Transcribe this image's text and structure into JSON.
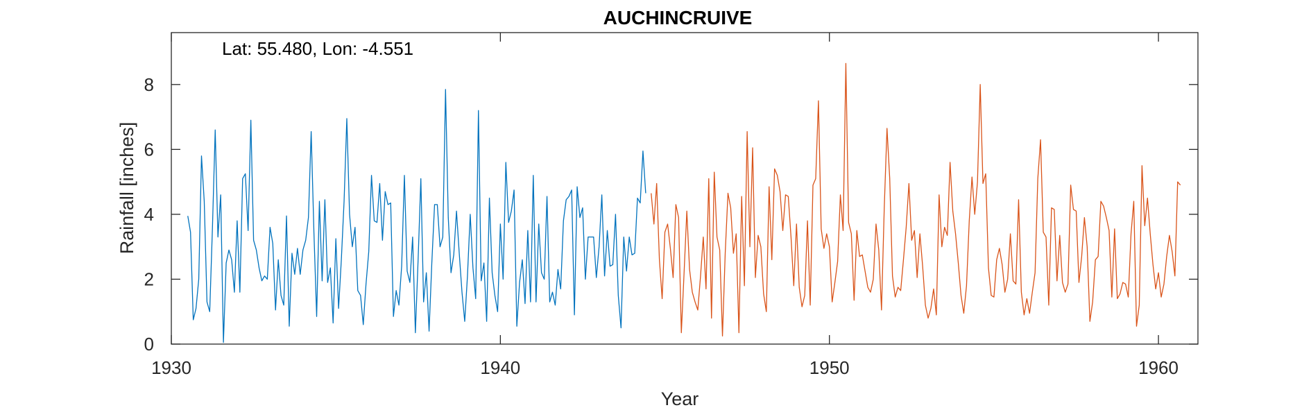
{
  "chart_data": {
    "type": "line",
    "title": "AUCHINCRUIVE",
    "xlabel": "Year",
    "ylabel": "Rainfall [inches]",
    "annotation": "Lat: 55.480, Lon: -4.551",
    "xlim": [
      1930,
      1961.2
    ],
    "ylim": [
      0,
      9.6
    ],
    "xticks": [
      1930,
      1940,
      1950,
      1960
    ],
    "yticks": [
      0,
      2,
      4,
      6,
      8
    ],
    "grid": false,
    "legend": "none",
    "series": [
      {
        "color": "#0072BD",
        "x_start": 1930.5,
        "x_step": 0.0833333,
        "values": [
          3.95,
          3.45,
          0.75,
          1.1,
          2.0,
          5.8,
          4.4,
          1.3,
          1.0,
          3.6,
          6.6,
          3.3,
          4.6,
          0.05,
          2.5,
          2.9,
          2.6,
          1.6,
          3.8,
          1.6,
          5.1,
          5.25,
          3.5,
          6.9,
          3.2,
          2.9,
          2.35,
          1.95,
          2.1,
          2.0,
          3.6,
          3.1,
          1.05,
          2.6,
          1.5,
          1.2,
          3.95,
          0.55,
          2.8,
          2.15,
          2.95,
          2.15,
          2.9,
          3.2,
          3.9,
          6.55,
          3.45,
          0.85,
          4.4,
          1.95,
          4.45,
          1.9,
          2.35,
          0.65,
          3.25,
          1.1,
          2.6,
          4.4,
          6.95,
          4.0,
          3.0,
          3.6,
          1.65,
          1.5,
          0.6,
          1.85,
          2.85,
          5.2,
          3.8,
          3.75,
          4.95,
          3.2,
          4.7,
          4.3,
          4.35,
          0.85,
          1.65,
          1.2,
          2.4,
          5.2,
          2.25,
          1.9,
          3.3,
          0.35,
          2.6,
          5.1,
          1.3,
          2.2,
          0.4,
          2.5,
          4.3,
          4.3,
          3.0,
          3.3,
          7.85,
          3.9,
          2.2,
          2.75,
          4.1,
          2.8,
          1.6,
          0.7,
          2.1,
          4.0,
          2.35,
          1.4,
          7.2,
          1.95,
          2.5,
          0.7,
          4.5,
          2.2,
          1.5,
          1.0,
          3.7,
          2.0,
          5.6,
          3.75,
          4.1,
          4.75,
          0.55,
          1.9,
          2.6,
          1.25,
          3.5,
          1.3,
          5.2,
          1.3,
          3.7,
          2.2,
          2.0,
          4.55,
          1.3,
          1.6,
          1.2,
          2.3,
          1.7,
          3.8,
          4.45,
          4.55,
          4.75,
          0.9,
          4.85,
          3.9,
          4.2,
          2.0,
          3.3,
          3.3,
          3.3,
          2.05,
          3.0,
          4.6,
          2.1,
          3.5,
          2.4,
          2.45,
          4.0,
          1.5,
          0.5,
          3.3,
          2.25,
          3.3,
          2.75,
          2.8,
          4.5,
          4.35,
          5.95,
          4.65
        ]
      },
      {
        "color": "#D95319",
        "x_start": 1944.5833,
        "x_step": 0.0833333,
        "values": [
          4.65,
          3.7,
          4.95,
          2.6,
          1.4,
          3.45,
          3.7,
          2.95,
          2.05,
          4.3,
          3.9,
          0.35,
          2.2,
          4.1,
          2.3,
          1.6,
          1.3,
          1.05,
          2.1,
          3.3,
          1.7,
          5.1,
          0.8,
          5.3,
          3.3,
          2.9,
          0.25,
          2.8,
          4.65,
          4.2,
          2.8,
          3.4,
          0.35,
          4.55,
          1.8,
          6.55,
          3.0,
          6.05,
          2.05,
          3.35,
          3.0,
          1.55,
          1.0,
          4.85,
          2.6,
          5.4,
          5.2,
          4.7,
          3.5,
          4.6,
          4.55,
          3.3,
          1.8,
          3.7,
          1.75,
          1.15,
          1.5,
          3.8,
          1.2,
          4.9,
          5.1,
          7.5,
          3.55,
          2.95,
          3.4,
          3.0,
          1.3,
          1.9,
          2.55,
          4.6,
          3.5,
          8.65,
          3.75,
          3.4,
          1.35,
          3.5,
          2.7,
          2.75,
          2.25,
          1.75,
          1.6,
          2.0,
          3.7,
          2.9,
          1.05,
          4.2,
          6.65,
          5.1,
          2.1,
          1.45,
          1.75,
          1.65,
          2.6,
          3.6,
          4.95,
          3.2,
          3.5,
          2.05,
          3.4,
          2.4,
          1.2,
          0.8,
          1.1,
          1.7,
          0.9,
          4.6,
          3.0,
          3.6,
          3.35,
          5.6,
          4.1,
          3.4,
          2.5,
          1.5,
          0.95,
          1.8,
          3.8,
          5.15,
          4.0,
          5.0,
          8.0,
          4.95,
          5.25,
          2.35,
          1.5,
          1.45,
          2.6,
          2.95,
          2.45,
          1.6,
          2.0,
          3.4,
          1.95,
          1.85,
          4.45,
          1.6,
          0.9,
          1.4,
          0.95,
          1.6,
          2.2,
          5.1,
          6.3,
          3.45,
          3.3,
          1.2,
          4.2,
          4.15,
          1.95,
          3.35,
          1.9,
          1.6,
          1.85,
          4.9,
          4.15,
          4.1,
          1.9,
          2.7,
          3.9,
          3.0,
          0.7,
          1.3,
          2.6,
          2.7,
          4.4,
          4.25,
          3.9,
          3.5,
          1.45,
          3.55,
          1.4,
          1.55,
          1.9,
          1.85,
          1.45,
          3.4,
          4.4,
          0.55,
          1.2,
          5.5,
          3.65,
          4.5,
          3.4,
          2.45,
          1.7,
          2.2,
          1.45,
          1.85,
          2.7,
          3.35,
          2.85,
          2.1,
          5.0,
          4.9
        ]
      }
    ]
  }
}
